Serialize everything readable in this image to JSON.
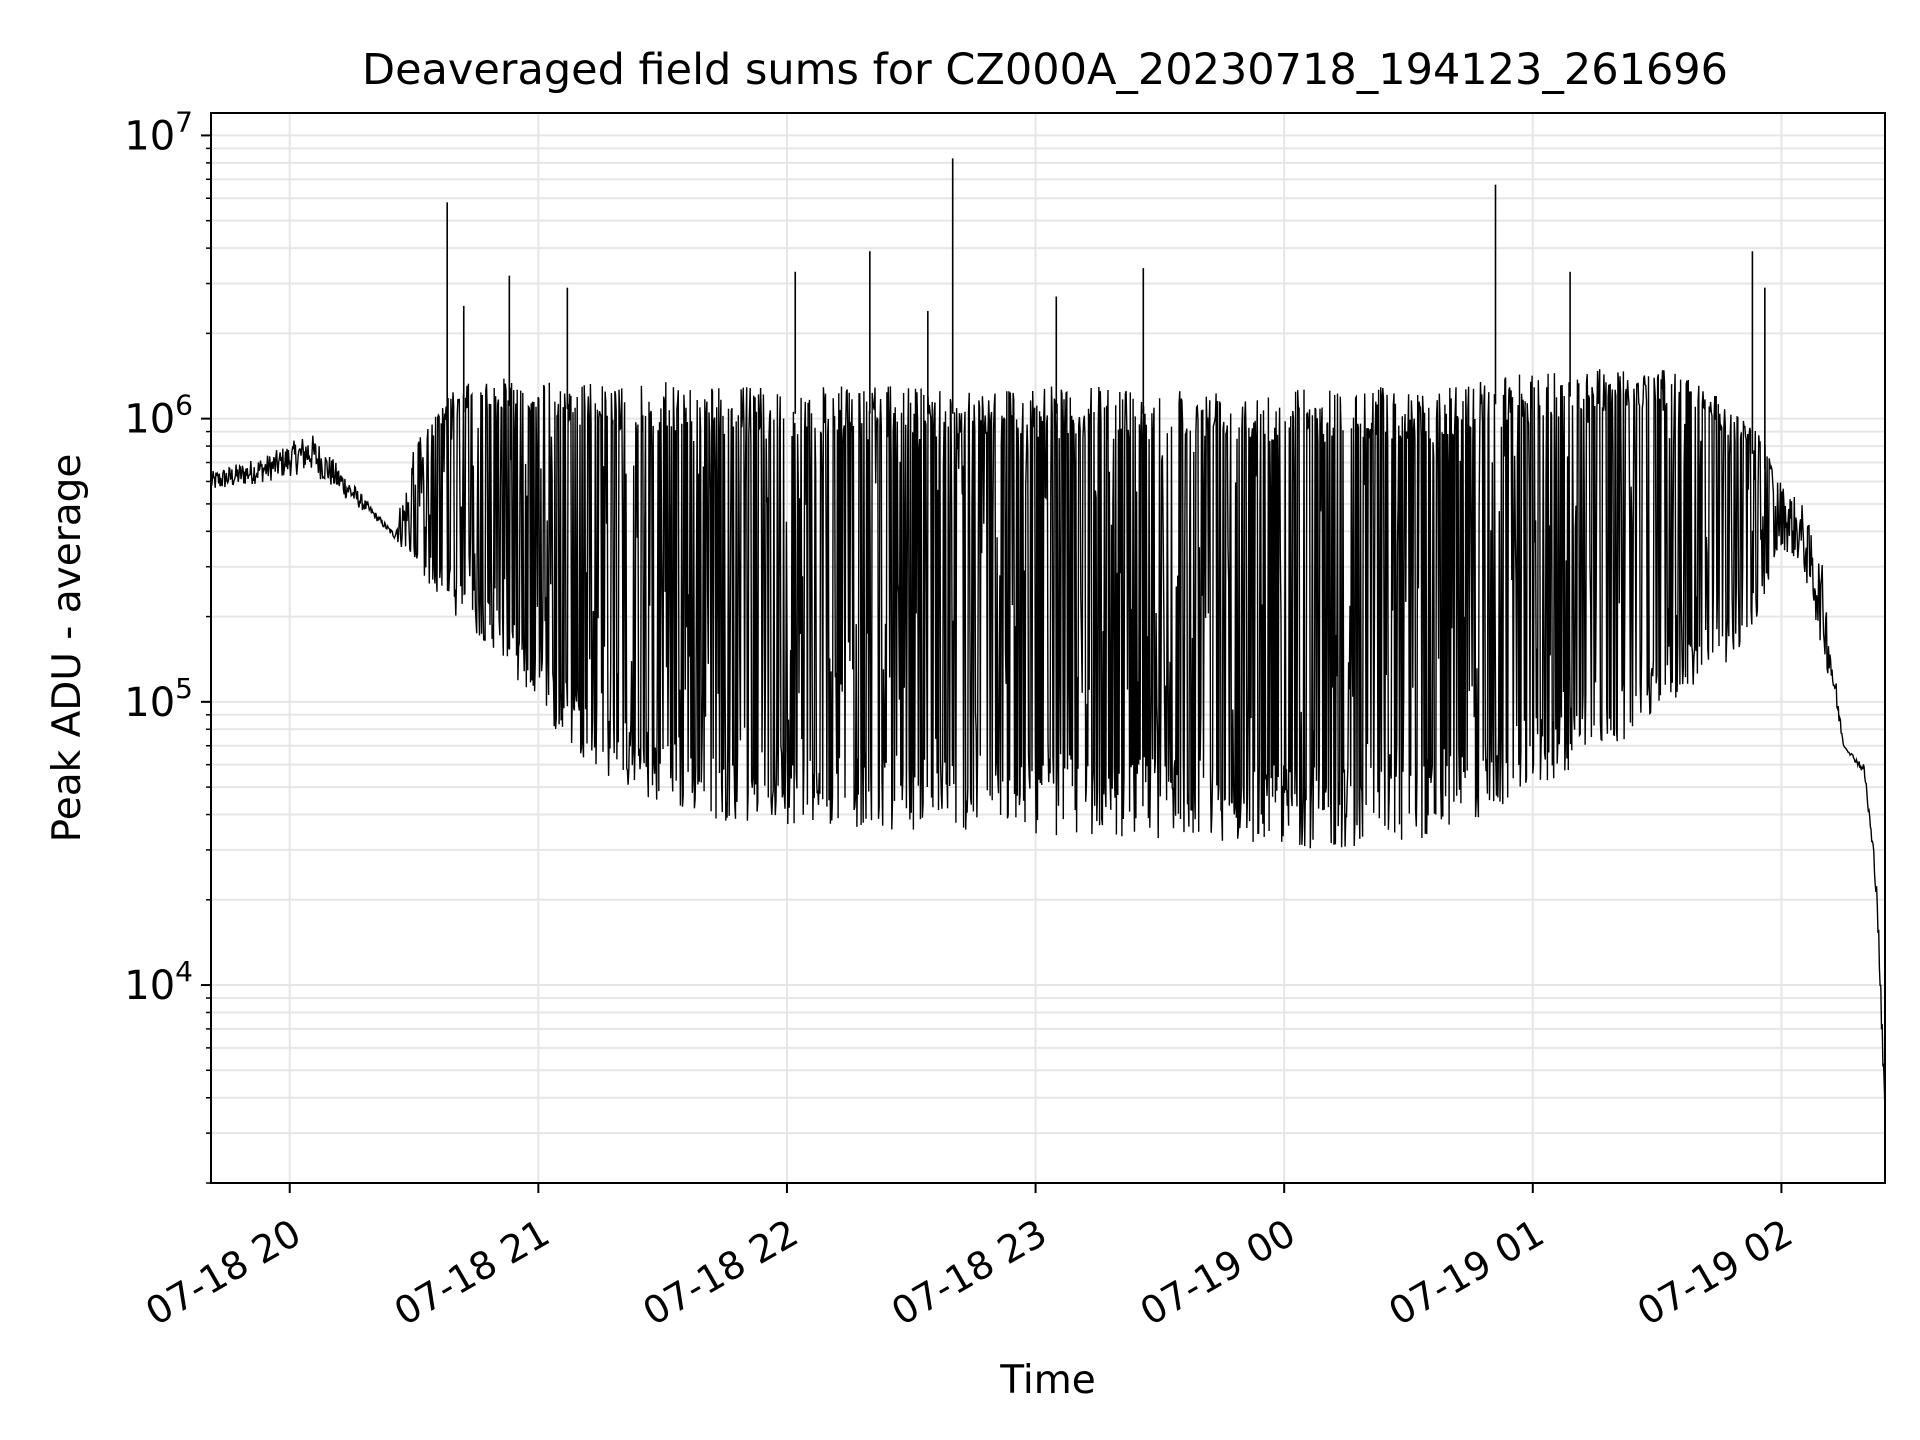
{
  "chart_data": {
    "type": "line",
    "title": "Deaveraged field sums for CZ000A_20230718_194123_261696",
    "xlabel": "Time",
    "ylabel": "Peak ADU - average",
    "x_tick_labels": [
      "07-18 20",
      "07-18 21",
      "07-18 22",
      "07-18 23",
      "07-19 00",
      "07-19 01",
      "07-19 02"
    ],
    "x_tick_values": [
      "2023-07-18 20:00",
      "2023-07-18 21:00",
      "2023-07-18 22:00",
      "2023-07-18 23:00",
      "2023-07-19 00:00",
      "2023-07-19 01:00",
      "2023-07-19 02:00"
    ],
    "xlim": [
      "2023-07-18 19:41",
      "2023-07-19 02:25"
    ],
    "y_scale": "log",
    "y_tick_bases": [
      "10",
      "10",
      "10",
      "10"
    ],
    "y_tick_exponents": [
      "4",
      "5",
      "6",
      "7"
    ],
    "ylim": [
      2000,
      12000000
    ],
    "grid": true,
    "line_color": "#000000",
    "grid_color": "#e6e6e6",
    "envelope": {
      "x": [
        "2023-07-18 19:41",
        "2023-07-18 19:55",
        "2023-07-18 20:05",
        "2023-07-18 20:15",
        "2023-07-18 20:20",
        "2023-07-18 20:25",
        "2023-07-18 20:30",
        "2023-07-18 20:40",
        "2023-07-18 20:50",
        "2023-07-18 21:00",
        "2023-07-18 21:10",
        "2023-07-18 21:20",
        "2023-07-18 21:30",
        "2023-07-18 21:45",
        "2023-07-18 22:00",
        "2023-07-18 22:15",
        "2023-07-18 22:30",
        "2023-07-18 22:45",
        "2023-07-18 23:00",
        "2023-07-18 23:15",
        "2023-07-18 23:30",
        "2023-07-18 23:45",
        "2023-07-19 00:00",
        "2023-07-19 00:10",
        "2023-07-19 00:20",
        "2023-07-19 00:30",
        "2023-07-19 00:40",
        "2023-07-19 00:50",
        "2023-07-19 01:00",
        "2023-07-19 01:10",
        "2023-07-19 01:20",
        "2023-07-19 01:30",
        "2023-07-19 01:40",
        "2023-07-19 01:50",
        "2023-07-19 01:55",
        "2023-07-19 02:00",
        "2023-07-19 02:05",
        "2023-07-19 02:10",
        "2023-07-19 02:15",
        "2023-07-19 02:20",
        "2023-07-19 02:23",
        "2023-07-19 02:25"
      ],
      "low": [
        550000,
        600000,
        650000,
        500000,
        450000,
        380000,
        300000,
        200000,
        150000,
        90000,
        65000,
        50000,
        42000,
        38000,
        37000,
        36000,
        35000,
        35000,
        34000,
        33000,
        33000,
        32000,
        31000,
        30000,
        31000,
        32000,
        35000,
        40000,
        48000,
        58000,
        70000,
        90000,
        115000,
        150000,
        200000,
        350000,
        300000,
        150000,
        70000,
        55000,
        20000,
        3000
      ],
      "high": [
        650000,
        750000,
        900000,
        600000,
        480000,
        400000,
        800000,
        1300000,
        1400000,
        1350000,
        1350000,
        1300000,
        1350000,
        1300000,
        1300000,
        1300000,
        1300000,
        1300000,
        1300000,
        1300000,
        1300000,
        1300000,
        1300000,
        1300000,
        1300000,
        1300000,
        1300000,
        1400000,
        1450000,
        1500000,
        1550000,
        1500000,
        1400000,
        1000000,
        900000,
        600000,
        500000,
        300000,
        70000,
        60000,
        25000,
        4000
      ]
    },
    "spikes": [
      {
        "x": "2023-07-18 20:38",
        "y": 5800000
      },
      {
        "x": "2023-07-18 20:42",
        "y": 2500000
      },
      {
        "x": "2023-07-18 20:53",
        "y": 3200000
      },
      {
        "x": "2023-07-18 21:07",
        "y": 2900000
      },
      {
        "x": "2023-07-18 22:02",
        "y": 3300000
      },
      {
        "x": "2023-07-18 22:20",
        "y": 3900000
      },
      {
        "x": "2023-07-18 22:34",
        "y": 2400000
      },
      {
        "x": "2023-07-18 22:40",
        "y": 8300000
      },
      {
        "x": "2023-07-18 23:05",
        "y": 2700000
      },
      {
        "x": "2023-07-18 23:26",
        "y": 3400000
      },
      {
        "x": "2023-07-19 00:51",
        "y": 6700000
      },
      {
        "x": "2023-07-19 01:09",
        "y": 3300000
      },
      {
        "x": "2023-07-19 01:53",
        "y": 3900000
      },
      {
        "x": "2023-07-19 01:56",
        "y": 2900000
      }
    ]
  }
}
